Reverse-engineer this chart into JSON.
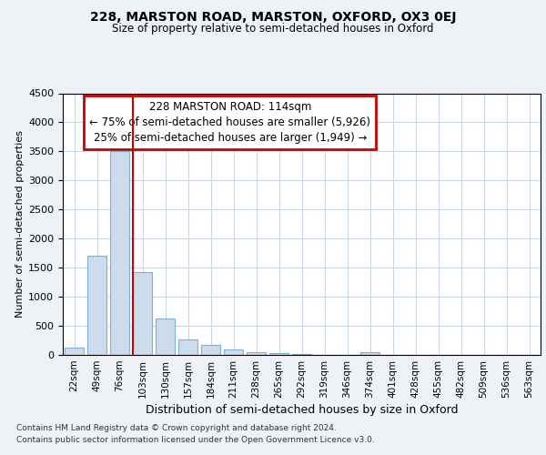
{
  "title1": "228, MARSTON ROAD, MARSTON, OXFORD, OX3 0EJ",
  "title2": "Size of property relative to semi-detached houses in Oxford",
  "xlabel": "Distribution of semi-detached houses by size in Oxford",
  "ylabel": "Number of semi-detached properties",
  "bins": [
    "22sqm",
    "49sqm",
    "76sqm",
    "103sqm",
    "130sqm",
    "157sqm",
    "184sqm",
    "211sqm",
    "238sqm",
    "265sqm",
    "292sqm",
    "319sqm",
    "346sqm",
    "374sqm",
    "401sqm",
    "428sqm",
    "455sqm",
    "482sqm",
    "509sqm",
    "536sqm",
    "563sqm"
  ],
  "values": [
    120,
    1700,
    3500,
    1420,
    630,
    260,
    165,
    100,
    50,
    30,
    10,
    5,
    5,
    50,
    0,
    0,
    0,
    0,
    0,
    0,
    0
  ],
  "bar_color": "#ccdcec",
  "bar_edge_color": "#7fafd4",
  "property_line_color": "#cc0000",
  "annotation_line1": "228 MARSTON ROAD: 114sqm",
  "annotation_line2": "← 75% of semi-detached houses are smaller (5,926)",
  "annotation_line3": "25% of semi-detached houses are larger (1,949) →",
  "annotation_box_color": "#ffffff",
  "annotation_box_edge": "#cc0000",
  "ylim": [
    0,
    4500
  ],
  "yticks": [
    0,
    500,
    1000,
    1500,
    2000,
    2500,
    3000,
    3500,
    4000,
    4500
  ],
  "footer1": "Contains HM Land Registry data © Crown copyright and database right 2024.",
  "footer2": "Contains public sector information licensed under the Open Government Licence v3.0.",
  "background_color": "#eef2f7",
  "plot_background": "#ffffff",
  "grid_color": "#c8d8e8"
}
